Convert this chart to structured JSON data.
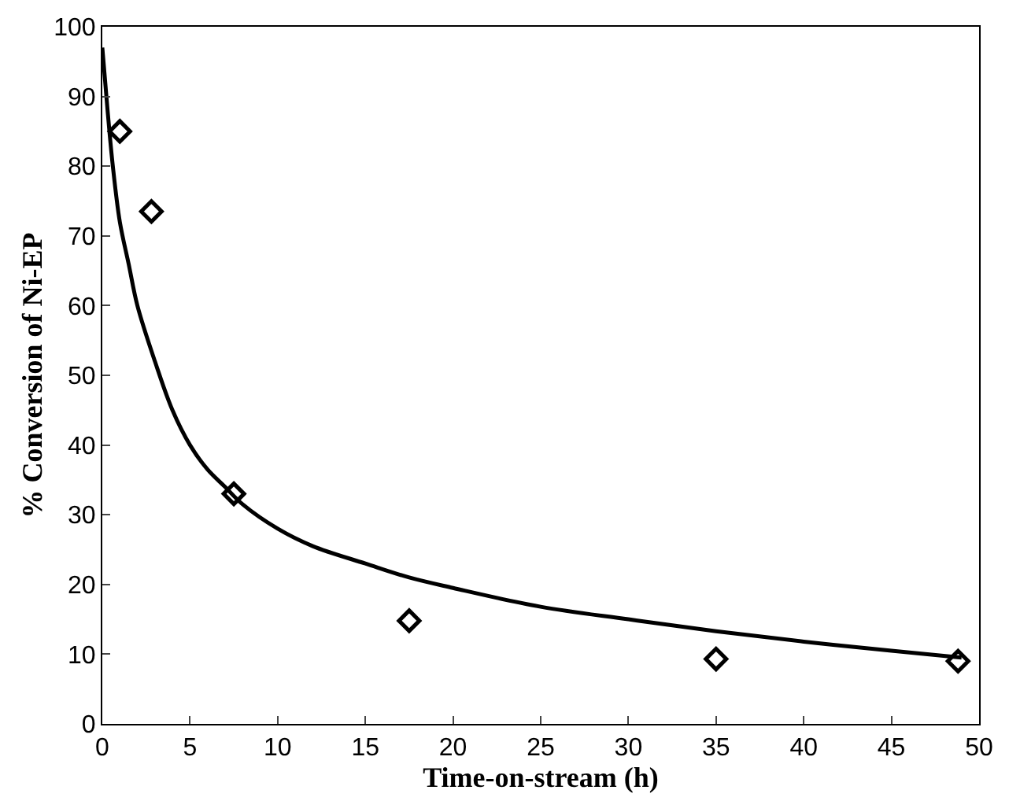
{
  "chart_data": {
    "type": "scatter",
    "xlabel": "Time-on-stream (h)",
    "ylabel": "% Conversion of Ni-EP",
    "xlim": [
      0,
      50
    ],
    "xticks": [
      0,
      5,
      10,
      15,
      20,
      25,
      30,
      35,
      40,
      45,
      50
    ],
    "ylim": [
      0,
      100
    ],
    "yticks": [
      0,
      10,
      20,
      30,
      40,
      50,
      60,
      70,
      80,
      90,
      100
    ],
    "series": [
      {
        "marker": "diamond",
        "color": "#000000",
        "x": [
          1,
          2.8,
          7.5,
          17.5,
          35,
          48.8
        ],
        "values": [
          85,
          73.5,
          33,
          14.8,
          9.3,
          9
        ]
      },
      {
        "type": "line",
        "marker": "none",
        "line_style": "solid",
        "color": "#000000",
        "x": [
          0,
          0.3,
          0.6,
          1,
          1.5,
          2,
          3,
          4,
          5,
          6,
          7,
          8,
          10,
          12,
          15,
          17.5,
          20,
          25,
          30,
          35,
          40,
          45,
          49
        ],
        "values": [
          97,
          88,
          80,
          72,
          66,
          60,
          52,
          45,
          40,
          36.5,
          34,
          31.5,
          28,
          25.5,
          23,
          21,
          19.5,
          16.8,
          15,
          13.3,
          11.8,
          10.5,
          9.5
        ]
      }
    ]
  }
}
